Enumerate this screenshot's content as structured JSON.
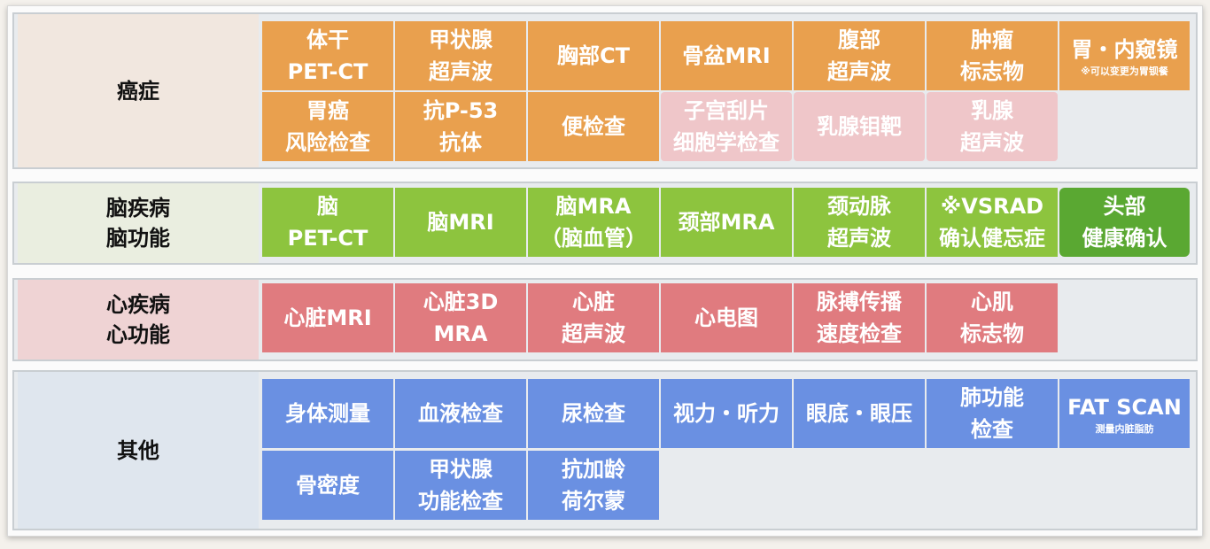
{
  "sections": [
    {
      "label": [
        "癌症"
      ],
      "label_bg": "#f1e7df",
      "color": "#e9a04e",
      "rows": [
        [
          {
            "lines": [
              "体干",
              "PET-CT"
            ],
            "style": "orange"
          },
          {
            "lines": [
              "甲状腺",
              "超声波"
            ],
            "style": "orange"
          },
          {
            "lines": [
              "胸部CT"
            ],
            "style": "orange"
          },
          {
            "lines": [
              "骨盆MRI"
            ],
            "style": "orange"
          },
          {
            "lines": [
              "腹部",
              "超声波"
            ],
            "style": "orange"
          },
          {
            "lines": [
              "肿瘤",
              "标志物"
            ],
            "style": "orange"
          },
          {
            "lines": [
              "胃・内窥镜"
            ],
            "note": "※可以变更为胃钡餐",
            "style": "orange"
          }
        ],
        [
          {
            "lines": [
              "胃癌",
              "风险检查"
            ],
            "style": "orange"
          },
          {
            "lines": [
              "抗P-53",
              "抗体"
            ],
            "style": "orange"
          },
          {
            "lines": [
              "便检查"
            ],
            "style": "orange"
          },
          {
            "lines": [
              "子宫刮片",
              "细胞学检查"
            ],
            "style": "faded"
          },
          {
            "lines": [
              "乳腺钼靶"
            ],
            "style": "faded"
          },
          {
            "lines": [
              "乳腺",
              "超声波"
            ],
            "style": "faded"
          }
        ]
      ]
    },
    {
      "label": [
        "脑疾病",
        "脑功能"
      ],
      "label_bg": "#eaeee0",
      "color": "#8dc43e",
      "rows": [
        [
          {
            "lines": [
              "脑",
              "PET-CT"
            ],
            "style": "green"
          },
          {
            "lines": [
              "脑MRI"
            ],
            "style": "green"
          },
          {
            "lines": [
              "脑MRA",
              "（脑血管）"
            ],
            "style": "green"
          },
          {
            "lines": [
              "颈部MRA"
            ],
            "style": "green"
          },
          {
            "lines": [
              "颈动脉",
              "超声波"
            ],
            "style": "green"
          },
          {
            "lines": [
              "※VSRAD",
              "确认健忘症"
            ],
            "style": "green"
          },
          {
            "lines": [
              "头部",
              "健康确认"
            ],
            "style": "dkgreen"
          }
        ]
      ]
    },
    {
      "label": [
        "心疾病",
        "心功能"
      ],
      "label_bg": "#efd3d4",
      "color": "#e07b7f",
      "rows": [
        [
          {
            "lines": [
              "心脏MRI"
            ],
            "style": "red"
          },
          {
            "lines": [
              "心脏3D",
              "MRA"
            ],
            "style": "red"
          },
          {
            "lines": [
              "心脏",
              "超声波"
            ],
            "style": "red"
          },
          {
            "lines": [
              "心电图"
            ],
            "style": "red"
          },
          {
            "lines": [
              "脉搏传播",
              "速度检查"
            ],
            "style": "red"
          },
          {
            "lines": [
              "心肌",
              "标志物"
            ],
            "style": "red"
          }
        ]
      ]
    },
    {
      "label": [
        "其他"
      ],
      "label_bg": "#dfe6ee",
      "color": "#6a90e2",
      "rows": [
        [
          {
            "lines": [
              "身体测量"
            ],
            "style": "blue"
          },
          {
            "lines": [
              "血液检查"
            ],
            "style": "blue"
          },
          {
            "lines": [
              "尿检查"
            ],
            "style": "blue"
          },
          {
            "lines": [
              "视力・听力"
            ],
            "style": "blue"
          },
          {
            "lines": [
              "眼底・眼压"
            ],
            "style": "blue"
          },
          {
            "lines": [
              "肺功能",
              "检查"
            ],
            "style": "blue"
          },
          {
            "lines": [
              "FAT SCAN"
            ],
            "note": "测量内脏脂肪",
            "style": "blue"
          }
        ],
        [
          {
            "lines": [
              "骨密度"
            ],
            "style": "blue"
          },
          {
            "lines": [
              "甲状腺",
              "功能检查"
            ],
            "style": "blue"
          },
          {
            "lines": [
              "抗加龄",
              "荷尔蒙"
            ],
            "style": "blue"
          }
        ]
      ]
    }
  ]
}
